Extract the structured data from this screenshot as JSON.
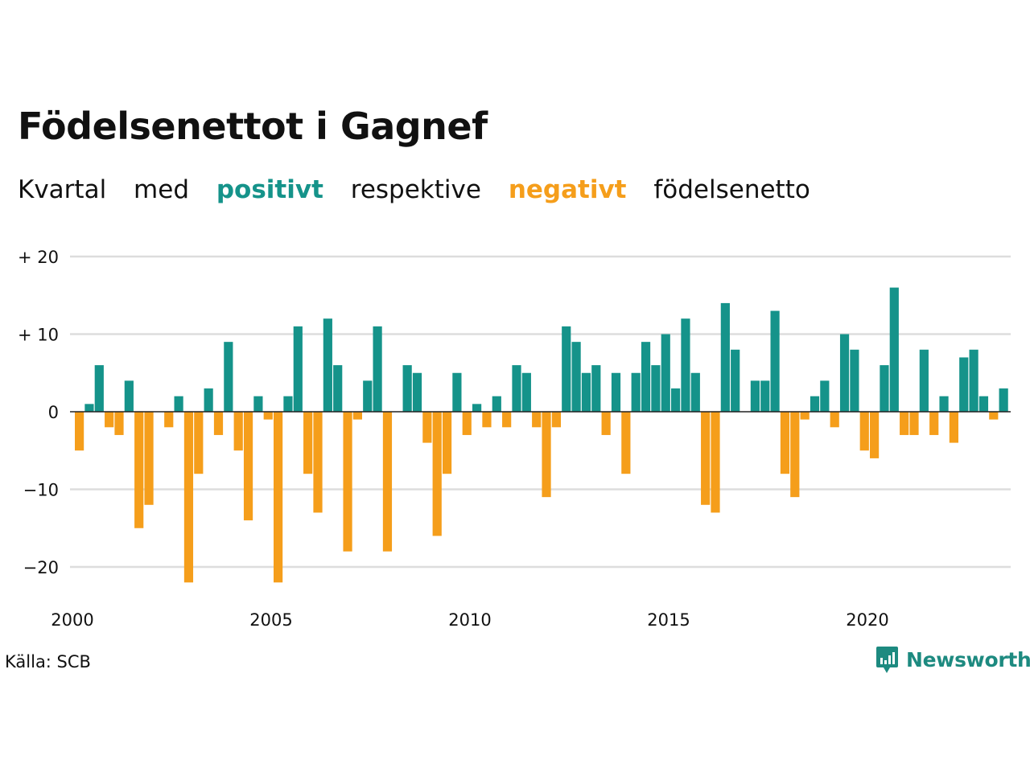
{
  "title": "Födelsenettot i Gagnef",
  "subtitle": {
    "w1": "Kvartal",
    "w2": "med",
    "positive": "positivt",
    "w3": "respektive",
    "negative": "negativt",
    "w4": "födelsenetto"
  },
  "source": "Källa: SCB",
  "brand": "Newsworthy",
  "colors": {
    "positive": "#15938a",
    "negative": "#f59e1b",
    "grid": "#dddddd",
    "zero": "#222222",
    "brand": "#1d8a80"
  },
  "chart_data": {
    "type": "bar",
    "title": "Födelsenettot i Gagnef",
    "xlabel": "",
    "ylabel": "",
    "ylim": [
      -25,
      20
    ],
    "yticks": [
      {
        "value": 20,
        "label": "+ 20"
      },
      {
        "value": 10,
        "label": "+ 10"
      },
      {
        "value": 0,
        "label": "0"
      },
      {
        "value": -10,
        "label": "−10"
      },
      {
        "value": -20,
        "label": "−20"
      }
    ],
    "xticks": [
      "2000",
      "2005",
      "2010",
      "2015",
      "2020"
    ],
    "grid": true,
    "start_year": 2000,
    "values": [
      -5,
      1,
      6,
      -2,
      -3,
      4,
      -15,
      -12,
      0,
      -2,
      2,
      -22,
      -8,
      3,
      -3,
      9,
      -5,
      -14,
      2,
      -1,
      -22,
      2,
      11,
      -8,
      -13,
      12,
      6,
      -18,
      -1,
      4,
      11,
      -18,
      0,
      6,
      5,
      -4,
      -16,
      -8,
      5,
      -3,
      1,
      -2,
      2,
      -2,
      6,
      5,
      -2,
      -11,
      -2,
      11,
      9,
      5,
      6,
      -3,
      5,
      -8,
      5,
      9,
      6,
      10,
      3,
      12,
      5,
      -12,
      -13,
      14,
      8,
      0,
      4,
      4,
      13,
      -8,
      -11,
      -1,
      2,
      4,
      -2,
      10,
      8,
      -5,
      -6,
      6,
      16,
      -3,
      -3,
      8,
      -3,
      2,
      -4,
      7,
      8,
      2,
      -1,
      3
    ]
  }
}
